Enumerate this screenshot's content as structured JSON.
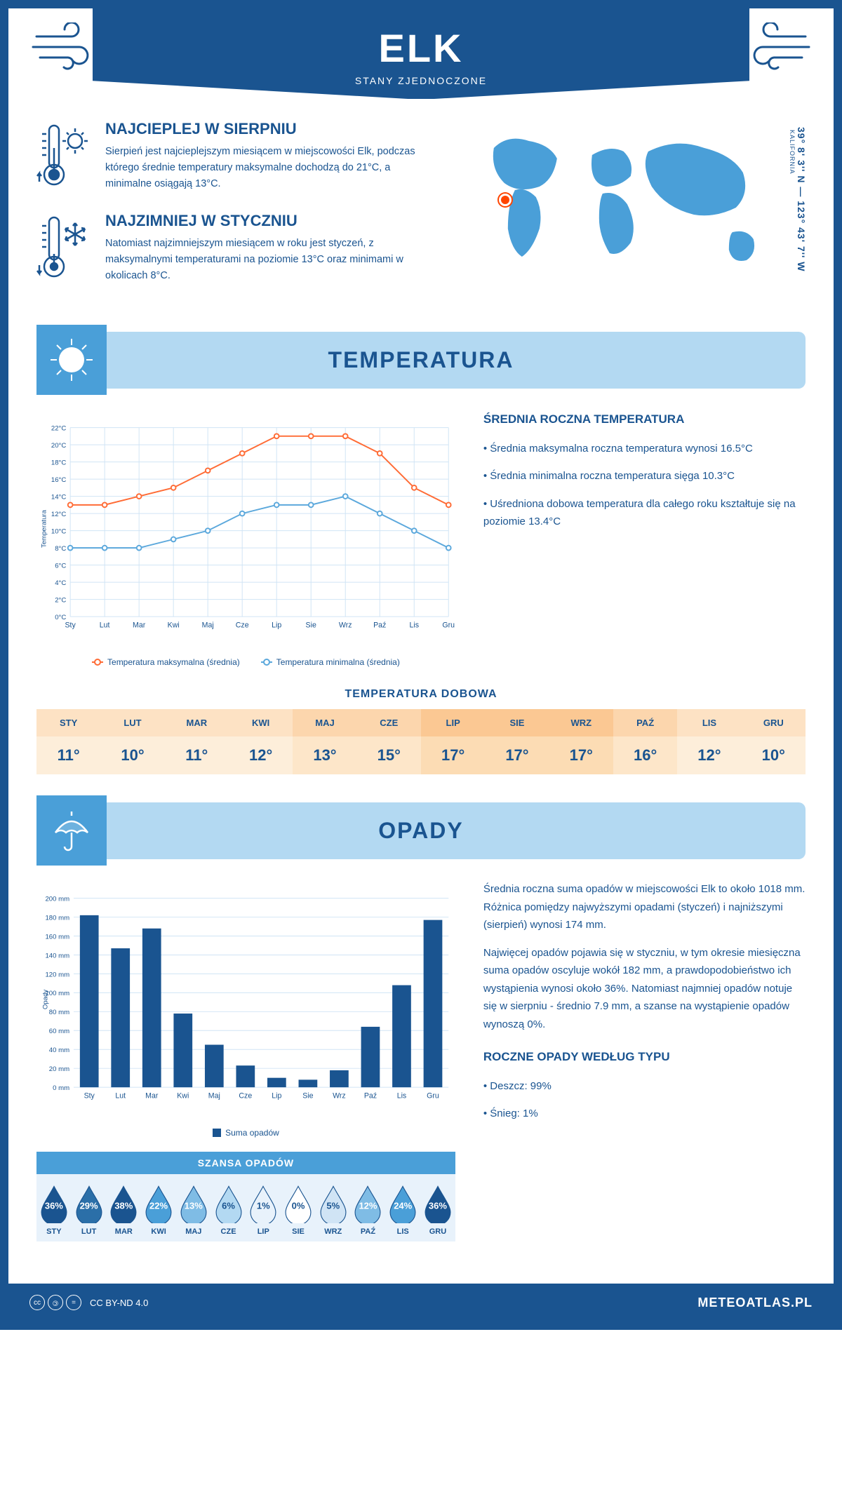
{
  "header": {
    "title": "ELK",
    "subtitle": "STANY ZJEDNOCZONE"
  },
  "coords": {
    "text": "39° 8' 3'' N — 123° 43' 7'' W",
    "region": "KALIFORNIA"
  },
  "map_marker": {
    "left_pct": 14,
    "top_pct": 42
  },
  "facts": {
    "warmest": {
      "title": "NAJCIEPLEJ W SIERPNIU",
      "text": "Sierpień jest najcieplejszym miesiącem w miejscowości Elk, podczas którego średnie temperatury maksymalne dochodzą do 21°C, a minimalne osiągają 13°C."
    },
    "coldest": {
      "title": "NAJZIMNIEJ W STYCZNIU",
      "text": "Natomiast najzimniejszym miesiącem w roku jest styczeń, z maksymalnymi temperaturami na poziomie 13°C oraz minimami w okolicach 8°C."
    }
  },
  "temperature": {
    "section_title": "TEMPERATURA",
    "ylabel": "Temperatura",
    "months": [
      "Sty",
      "Lut",
      "Mar",
      "Kwi",
      "Maj",
      "Cze",
      "Lip",
      "Sie",
      "Wrz",
      "Paź",
      "Lis",
      "Gru"
    ],
    "max_series": {
      "label": "Temperatura maksymalna (średnia)",
      "color": "#ff6b35",
      "values": [
        13,
        13,
        14,
        15,
        17,
        19,
        21,
        21,
        21,
        19,
        15,
        13
      ]
    },
    "min_series": {
      "label": "Temperatura minimalna (średnia)",
      "color": "#5ba8dc",
      "values": [
        8,
        8,
        8,
        9,
        10,
        12,
        13,
        13,
        14,
        12,
        10,
        8
      ]
    },
    "ylim": [
      0,
      22
    ],
    "ytick_step": 2,
    "ytick_suffix": "°C",
    "grid_color": "#d0e4f5",
    "background": "#ffffff",
    "info_title": "ŚREDNIA ROCZNA TEMPERATURA",
    "info_bullets": [
      "Średnia maksymalna roczna temperatura wynosi 16.5°C",
      "Średnia minimalna roczna temperatura sięga 10.3°C",
      "Uśredniona dobowa temperatura dla całego roku kształtuje się na poziomie 13.4°C"
    ],
    "daily": {
      "title": "TEMPERATURA DOBOWA",
      "months": [
        "STY",
        "LUT",
        "MAR",
        "KWI",
        "MAJ",
        "CZE",
        "LIP",
        "SIE",
        "WRZ",
        "PAŹ",
        "LIS",
        "GRU"
      ],
      "values": [
        "11°",
        "10°",
        "11°",
        "12°",
        "13°",
        "15°",
        "17°",
        "17°",
        "17°",
        "16°",
        "12°",
        "10°"
      ],
      "header_colors": [
        "#fde2c4",
        "#fde2c4",
        "#fde2c4",
        "#fde2c4",
        "#fcd6ad",
        "#fcd6ad",
        "#fbc893",
        "#fbc893",
        "#fbc893",
        "#fcd6ad",
        "#fde2c4",
        "#fde2c4"
      ],
      "value_colors": [
        "#fdeeda",
        "#fdeeda",
        "#fdeeda",
        "#fdeeda",
        "#fde6c9",
        "#fde6c9",
        "#fcdcb4",
        "#fcdcb4",
        "#fcdcb4",
        "#fde6c9",
        "#fdeeda",
        "#fdeeda"
      ]
    }
  },
  "precip": {
    "section_title": "OPADY",
    "ylabel": "Opady",
    "months": [
      "Sty",
      "Lut",
      "Mar",
      "Kwi",
      "Maj",
      "Cze",
      "Lip",
      "Sie",
      "Wrz",
      "Paź",
      "Lis",
      "Gru"
    ],
    "values": [
      182,
      147,
      168,
      78,
      45,
      23,
      10,
      8,
      18,
      64,
      108,
      177
    ],
    "bar_color": "#1a5490",
    "grid_color": "#d0e4f5",
    "ylim": [
      0,
      200
    ],
    "ytick_step": 20,
    "ytick_suffix": " mm",
    "legend_label": "Suma opadów",
    "info_paras": [
      "Średnia roczna suma opadów w miejscowości Elk to około 1018 mm. Różnica pomiędzy najwyższymi opadami (styczeń) i najniższymi (sierpień) wynosi 174 mm.",
      "Najwięcej opadów pojawia się w styczniu, w tym okresie miesięczna suma opadów oscyluje wokół 182 mm, a prawdopodobieństwo ich wystąpienia wynosi około 36%. Natomiast najmniej opadów notuje się w sierpniu - średnio 7.9 mm, a szanse na wystąpienie opadów wynoszą 0%."
    ],
    "chance": {
      "title": "SZANSA OPADÓW",
      "months": [
        "STY",
        "LUT",
        "MAR",
        "KWI",
        "MAJ",
        "CZE",
        "LIP",
        "SIE",
        "WRZ",
        "PAŹ",
        "LIS",
        "GRU"
      ],
      "percents": [
        "36%",
        "29%",
        "38%",
        "22%",
        "13%",
        "6%",
        "1%",
        "0%",
        "5%",
        "12%",
        "24%",
        "36%"
      ],
      "drop_colors": [
        "#1a5490",
        "#2b6fa8",
        "#1a5490",
        "#4a9fd8",
        "#7fbce5",
        "#b3d9f2",
        "#e8f2fb",
        "#ffffff",
        "#d0e4f5",
        "#7fbce5",
        "#4a9fd8",
        "#1a5490"
      ],
      "text_colors": [
        "#fff",
        "#fff",
        "#fff",
        "#fff",
        "#fff",
        "#1a5490",
        "#1a5490",
        "#1a5490",
        "#1a5490",
        "#fff",
        "#fff",
        "#fff"
      ]
    },
    "by_type": {
      "title": "ROCZNE OPADY WEDŁUG TYPU",
      "items": [
        "Deszcz: 99%",
        "Śnieg: 1%"
      ]
    }
  },
  "footer": {
    "license": "CC BY-ND 4.0",
    "site": "METEOATLAS.PL"
  }
}
